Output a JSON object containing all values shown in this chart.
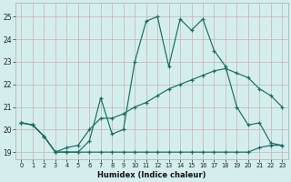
{
  "xlabel": "Humidex (Indice chaleur)",
  "bg_color": "#d4eeee",
  "grid_color_v": "#c8b0b0",
  "grid_color_h": "#c8b0b0",
  "line_color": "#1a6e62",
  "xlim": [
    -0.5,
    23.5
  ],
  "ylim": [
    18.7,
    25.6
  ],
  "yticks": [
    19,
    20,
    21,
    22,
    23,
    24,
    25
  ],
  "xticks": [
    0,
    1,
    2,
    3,
    4,
    5,
    6,
    7,
    8,
    9,
    10,
    11,
    12,
    13,
    14,
    15,
    16,
    17,
    18,
    19,
    20,
    21,
    22,
    23
  ],
  "line1_x": [
    0,
    1,
    2,
    3,
    4,
    5,
    6,
    7,
    8,
    9,
    10,
    11,
    12,
    13,
    14,
    15,
    16,
    17,
    18,
    19,
    20,
    21,
    22,
    23
  ],
  "line1_y": [
    20.3,
    20.2,
    19.7,
    19.0,
    19.0,
    19.0,
    19.0,
    19.0,
    19.0,
    19.0,
    19.0,
    19.0,
    19.0,
    19.0,
    19.0,
    19.0,
    19.0,
    19.0,
    19.0,
    19.0,
    19.0,
    19.2,
    19.3,
    19.3
  ],
  "line2_x": [
    0,
    1,
    2,
    3,
    4,
    5,
    6,
    7,
    8,
    9,
    10,
    11,
    12,
    13,
    14,
    15,
    16,
    17,
    18,
    19,
    20,
    21,
    22,
    23
  ],
  "line2_y": [
    20.3,
    20.2,
    19.7,
    19.0,
    19.2,
    19.3,
    20.0,
    20.5,
    20.5,
    20.7,
    21.0,
    21.2,
    21.5,
    21.8,
    22.0,
    22.2,
    22.4,
    22.6,
    22.7,
    22.5,
    22.3,
    21.8,
    21.5,
    21.0
  ],
  "line3_x": [
    0,
    1,
    2,
    3,
    4,
    5,
    6,
    7,
    8,
    9,
    10,
    11,
    12,
    13,
    14,
    15,
    16,
    17,
    18,
    19,
    20,
    21,
    22,
    23
  ],
  "line3_y": [
    20.3,
    20.2,
    19.7,
    19.0,
    19.0,
    19.0,
    19.5,
    21.4,
    19.8,
    20.0,
    23.0,
    24.8,
    25.0,
    22.8,
    24.9,
    24.4,
    24.9,
    23.5,
    22.8,
    21.0,
    20.2,
    20.3,
    19.4,
    19.3
  ]
}
